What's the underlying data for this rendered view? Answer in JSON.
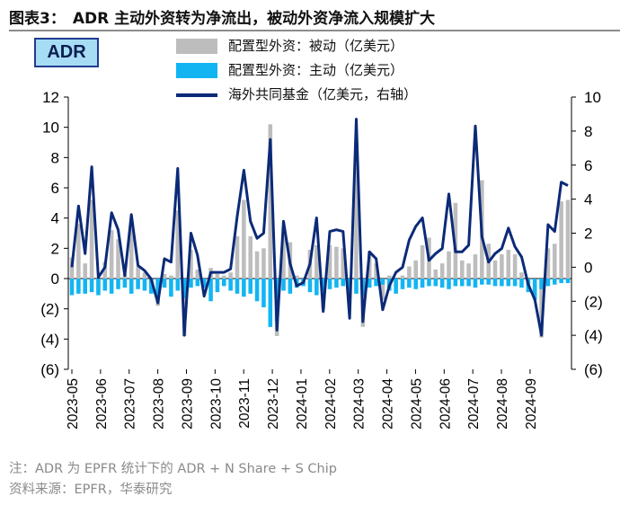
{
  "title": {
    "figure_label": "图表3：",
    "text": "ADR 主动外资转为净流出，被动外资净流入规模扩大"
  },
  "badge": "ADR",
  "notes": {
    "note": "注：ADR 为 EPFR 统计下的 ADR + N Share + S Chip",
    "source": "资料来源：EPFR，华泰研究"
  },
  "colors": {
    "passive": "#bdbdbd",
    "active": "#12b5f2",
    "fund": "#0b2a78"
  },
  "chart_data": {
    "type": "bar",
    "stacked": false,
    "x_tick_labels": [
      "2023-05",
      "2023-06",
      "2023-07",
      "2023-08",
      "2023-09",
      "2023-10",
      "2023-11",
      "2023-12",
      "2024-01",
      "2024-02",
      "2024-03",
      "2024-04",
      "2024-05",
      "2024-06",
      "2024-07",
      "2024-08",
      "2024-09"
    ],
    "weeks_per_month_approx": 4.33,
    "left_axis": {
      "ylim": [
        -6,
        12
      ],
      "ticks": [
        -6,
        -4,
        -2,
        0,
        2,
        4,
        6,
        8,
        10,
        12
      ],
      "tick_labels": [
        "(6)",
        "(4)",
        "(2)",
        "0",
        "2",
        "4",
        "6",
        "8",
        "10",
        "12"
      ]
    },
    "right_axis": {
      "ylim": [
        -6,
        10
      ],
      "ticks": [
        -6,
        -4,
        -2,
        0,
        2,
        4,
        6,
        8,
        10
      ],
      "tick_labels": [
        "(6)",
        "(4)",
        "(2)",
        "0",
        "2",
        "4",
        "6",
        "8",
        "10"
      ]
    },
    "series": [
      {
        "name": "配置型外资：被动（亿美元）",
        "type": "bar",
        "axis": "left",
        "values": [
          1.4,
          3.6,
          1.0,
          5.2,
          -0.8,
          1.1,
          3.2,
          2.6,
          0.3,
          3.4,
          0.8,
          0.4,
          -0.5,
          -1.8,
          0.3,
          0.2,
          4.5,
          -3.8,
          1.9,
          0.6,
          -0.6,
          0.7,
          0.3,
          0.2,
          0.4,
          2.8,
          5.2,
          2.8,
          1.8,
          2.0,
          10.2,
          -3.8,
          2.9,
          2.4,
          0.2,
          -0.3,
          1.9,
          2.2,
          -2.0,
          2.2,
          2.1,
          2.0,
          -0.4,
          9.0,
          -3.2,
          1.8,
          1.0,
          -1.4,
          0.2,
          -0.5,
          0.2,
          0.8,
          1.2,
          2.2,
          2.7,
          0.6,
          1.0,
          1.8,
          5.0,
          1.2,
          1.0,
          1.6,
          6.5,
          2.3,
          1.2,
          1.6,
          1.9,
          1.6,
          0.4,
          -0.3,
          -1.0,
          -3.9,
          2.0,
          2.3,
          5.1,
          5.2
        ],
        "estimated": true
      },
      {
        "name": "配置型外资：主动（亿美元）",
        "type": "bar",
        "axis": "left",
        "values": [
          -1.1,
          -1.0,
          -1.0,
          -0.9,
          -1.1,
          -0.8,
          -1.0,
          -0.7,
          -0.6,
          -1.0,
          -0.7,
          -0.8,
          -1.0,
          -1.4,
          -0.6,
          -1.2,
          -0.8,
          -1.3,
          -0.6,
          -0.5,
          -0.6,
          -1.5,
          -0.9,
          -0.5,
          -0.8,
          -1.0,
          -1.2,
          -1.0,
          -1.5,
          -1.9,
          -3.2,
          -2.8,
          -0.8,
          -1.0,
          -0.6,
          -0.5,
          -0.9,
          -1.1,
          -0.8,
          -0.7,
          -0.6,
          -0.5,
          -0.9,
          -1.0,
          -1.1,
          -0.6,
          -0.5,
          -0.4,
          -0.8,
          -1.0,
          -0.7,
          -0.6,
          -0.7,
          -0.6,
          -0.5,
          -0.5,
          -0.6,
          -0.7,
          -0.5,
          -0.5,
          -0.5,
          -0.6,
          -0.4,
          -0.4,
          -0.5,
          -0.5,
          -0.5,
          -0.5,
          -0.6,
          -0.9,
          -1.4,
          -0.7,
          -0.5,
          -0.4,
          -0.3,
          -0.3
        ],
        "estimated": true
      },
      {
        "name": "海外共同基金（亿美元，右轴）",
        "type": "line",
        "axis": "right",
        "values": [
          0.0,
          3.6,
          0.8,
          5.9,
          -0.6,
          0.0,
          3.2,
          2.2,
          -0.5,
          3.1,
          0.1,
          -0.2,
          -0.7,
          -2.1,
          0.5,
          0.3,
          5.8,
          -4.0,
          2.0,
          0.7,
          -1.7,
          -0.3,
          -0.3,
          -0.3,
          -0.1,
          3.0,
          5.7,
          2.7,
          1.7,
          2.0,
          7.5,
          -3.7,
          2.7,
          0.2,
          -1.1,
          -0.9,
          0.2,
          2.9,
          -2.6,
          2.1,
          2.2,
          2.1,
          -3.0,
          8.7,
          -3.2,
          0.9,
          0.5,
          -2.5,
          -1.1,
          -0.3,
          0.0,
          1.6,
          2.4,
          2.9,
          0.4,
          0.8,
          1.1,
          4.3,
          0.9,
          0.9,
          1.3,
          8.3,
          1.8,
          0.3,
          0.8,
          1.1,
          2.3,
          1.2,
          0.6,
          -1.0,
          -1.9,
          -4.0,
          2.5,
          2.1,
          5.0,
          4.8
        ],
        "estimated": true
      }
    ]
  }
}
